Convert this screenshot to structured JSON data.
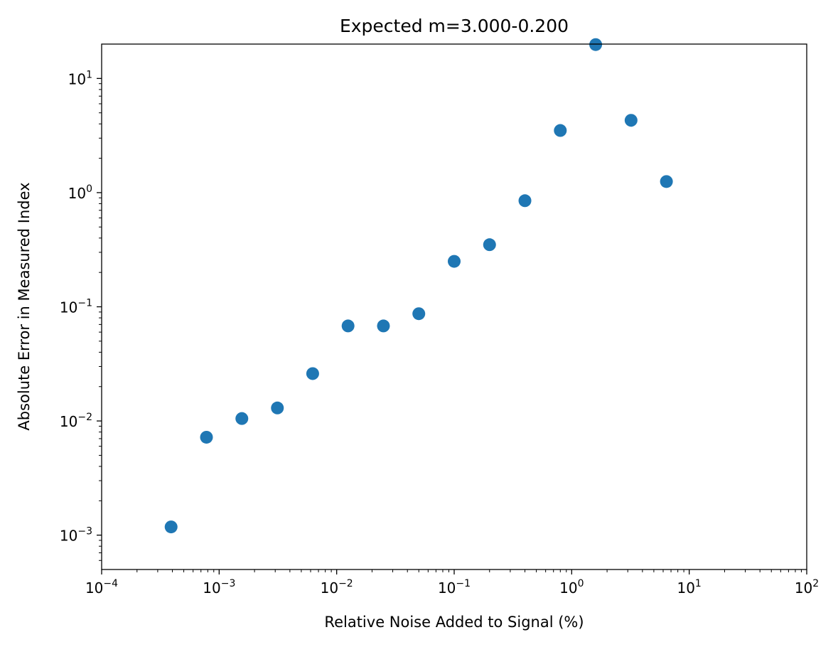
{
  "chart_data": {
    "type": "scatter",
    "title": "Expected m=3.000-0.200",
    "xlabel": "Relative Noise Added to Signal (%)",
    "ylabel": "Absolute Error in Measured Index",
    "xscale": "log",
    "yscale": "log",
    "xlim": [
      0.0001,
      100
    ],
    "ylim": [
      0.0005,
      20
    ],
    "grid": false,
    "legend": "none",
    "marker_color": "#1f77b4",
    "x_ticks": [
      {
        "base": "10",
        "exp": "−4",
        "value": 0.0001
      },
      {
        "base": "10",
        "exp": "−3",
        "value": 0.001
      },
      {
        "base": "10",
        "exp": "−2",
        "value": 0.01
      },
      {
        "base": "10",
        "exp": "−1",
        "value": 0.1
      },
      {
        "base": "10",
        "exp": "0",
        "value": 1
      },
      {
        "base": "10",
        "exp": "1",
        "value": 10
      },
      {
        "base": "10",
        "exp": "2",
        "value": 100
      }
    ],
    "y_ticks": [
      {
        "base": "10",
        "exp": "−3",
        "value": 0.001
      },
      {
        "base": "10",
        "exp": "−2",
        "value": 0.01
      },
      {
        "base": "10",
        "exp": "−1",
        "value": 0.1
      },
      {
        "base": "10",
        "exp": "0",
        "value": 1
      },
      {
        "base": "10",
        "exp": "1",
        "value": 10
      }
    ],
    "points": [
      {
        "x": 0.00039,
        "y": 0.00118
      },
      {
        "x": 0.00078,
        "y": 0.0072
      },
      {
        "x": 0.00156,
        "y": 0.0105
      },
      {
        "x": 0.00313,
        "y": 0.013
      },
      {
        "x": 0.00625,
        "y": 0.026
      },
      {
        "x": 0.0125,
        "y": 0.068
      },
      {
        "x": 0.025,
        "y": 0.068
      },
      {
        "x": 0.05,
        "y": 0.087
      },
      {
        "x": 0.1,
        "y": 0.25
      },
      {
        "x": 0.2,
        "y": 0.35
      },
      {
        "x": 0.4,
        "y": 0.85
      },
      {
        "x": 0.8,
        "y": 3.5
      },
      {
        "x": 1.6,
        "y": 19.8
      },
      {
        "x": 3.2,
        "y": 4.3
      },
      {
        "x": 6.4,
        "y": 1.25
      }
    ]
  }
}
